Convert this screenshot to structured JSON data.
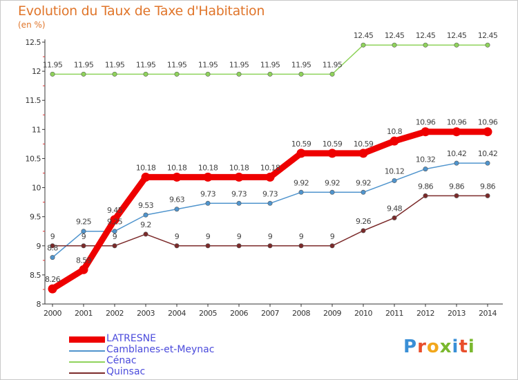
{
  "header": {
    "title": "Evolution du Taux de Taxe d'Habitation",
    "unit": "(en %)"
  },
  "logo": {
    "text": "Proxiti",
    "colors": [
      "#3a8fd6",
      "#e94e2b",
      "#f2a71c",
      "#7ab82e",
      "#3a8fd6",
      "#e94e2b",
      "#7ab82e"
    ]
  },
  "chart_data": {
    "type": "line",
    "title": "Evolution du Taux de Taxe d'Habitation",
    "ylabel": "(en %)",
    "xlabel": "",
    "ylim": [
      8,
      12.5
    ],
    "ytick_labels": [
      "8",
      "8.5",
      "9",
      "9.5",
      "10",
      "10.5",
      "11",
      "11.5",
      "12",
      "12.5"
    ],
    "x": [
      "2000",
      "2001",
      "2002",
      "2003",
      "2004",
      "2005",
      "2006",
      "2007",
      "2008",
      "2009",
      "2010",
      "2011",
      "2012",
      "2013",
      "2014"
    ],
    "grid": "minor ticks on y axis",
    "legend_position": "bottom-left",
    "series": [
      {
        "name": "LATRESNE",
        "color": "#ee0000",
        "values": [
          8.26,
          8.59,
          9.45,
          10.18,
          10.18,
          10.18,
          10.18,
          10.18,
          10.59,
          10.59,
          10.59,
          10.8,
          10.96,
          10.96,
          10.96
        ],
        "labels": [
          "8.26",
          "8.59",
          "9.45",
          "10.18",
          "10.18",
          "10.18",
          "10.18",
          "10.18",
          "10.59",
          "10.59",
          "10.59",
          "10.8",
          "10.96",
          "10.96",
          "10.96"
        ]
      },
      {
        "name": "Camblanes-et-Meynac",
        "color": "#4f94cd",
        "values": [
          8.8,
          9.25,
          9.25,
          9.53,
          9.63,
          9.73,
          9.73,
          9.73,
          9.92,
          9.92,
          9.92,
          10.12,
          10.32,
          10.42,
          10.42
        ],
        "labels": [
          "8.8",
          "9.25",
          "9.25",
          "9.53",
          "9.63",
          "9.73",
          "9.73",
          "9.73",
          "9.92",
          "9.92",
          "9.92",
          "10.12",
          "10.32",
          "10.42",
          "10.42"
        ]
      },
      {
        "name": "Cénac",
        "color": "#8fd35b",
        "values": [
          11.95,
          11.95,
          11.95,
          11.95,
          11.95,
          11.95,
          11.95,
          11.95,
          11.95,
          11.95,
          12.45,
          12.45,
          12.45,
          12.45,
          12.45
        ],
        "labels": [
          "11.95",
          "11.95",
          "11.95",
          "11.95",
          "11.95",
          "11.95",
          "11.95",
          "11.95",
          "11.95",
          "11.95",
          "12.45",
          "12.45",
          "12.45",
          "12.45",
          "12.45"
        ]
      },
      {
        "name": "Quinsac",
        "color": "#7b2a2a",
        "values": [
          9,
          9,
          9,
          9.2,
          9,
          9,
          9,
          9,
          9,
          9,
          9.26,
          9.48,
          9.86,
          9.86,
          9.86
        ],
        "labels": [
          "9",
          "9",
          "9",
          "9.2",
          "9",
          "9",
          "9",
          "9",
          "9",
          "9",
          "9.26",
          "9.48",
          "9.86",
          "9.86",
          "9.86"
        ]
      }
    ]
  }
}
